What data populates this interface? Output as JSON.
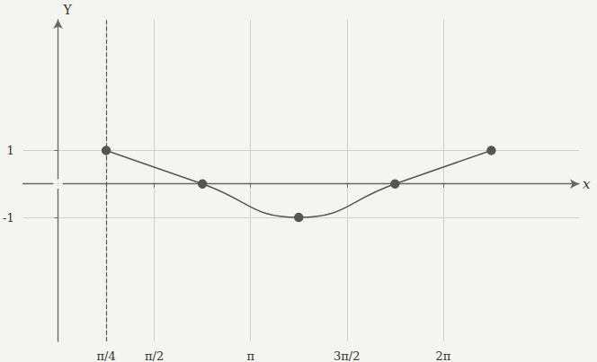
{
  "chart_data": {
    "type": "line",
    "x_label": "x",
    "y_label": "Y",
    "xlim": [
      -0.57,
      8.5
    ],
    "ylim": [
      -4.7,
      4.9
    ],
    "xticks": [
      {
        "value": 0.7853981634,
        "label": "π/4"
      },
      {
        "value": 1.5707963268,
        "label": "π/2"
      },
      {
        "value": 3.1415926536,
        "label": "π"
      },
      {
        "value": 4.7123889804,
        "label": "3π/2"
      },
      {
        "value": 6.2831853072,
        "label": "2π"
      }
    ],
    "yticks": [
      -1,
      1
    ],
    "grid": true,
    "color": "#555555",
    "series": [
      {
        "type": "line",
        "line_style": "solid",
        "marker": "circle",
        "x": [
          0.7853981634,
          2.3561944902,
          3.926990817,
          5.4977871438,
          7.0685834706
        ],
        "values": [
          1,
          0,
          -1,
          0,
          1
        ]
      },
      {
        "type": "scatter",
        "marker": "emptyCircle",
        "x": [
          0
        ],
        "values": [
          0
        ]
      }
    ],
    "reference_lines": [
      {
        "x": 0.7853981634,
        "line_style": "dashed"
      }
    ]
  }
}
